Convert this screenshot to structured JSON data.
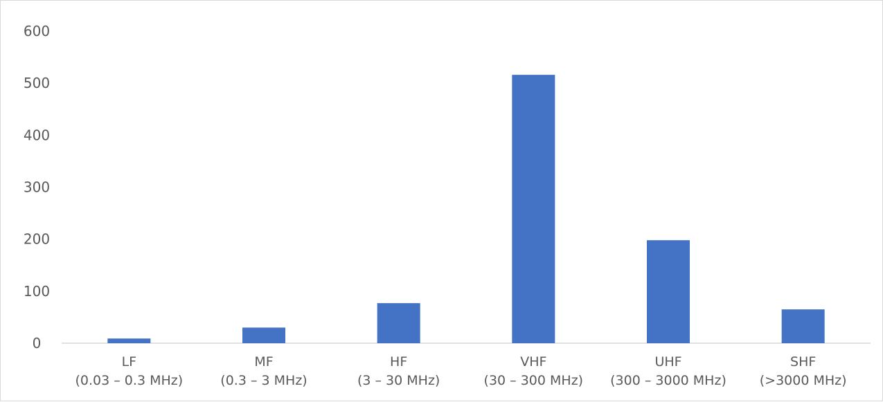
{
  "chart_data": {
    "type": "bar",
    "title": "",
    "xlabel": "",
    "ylabel": "",
    "categories": [
      [
        "LF",
        "(0.03 – 0.3 MHz)"
      ],
      [
        "MF",
        "(0.3 – 3 MHz)"
      ],
      [
        "HF",
        "(3 – 30 MHz)"
      ],
      [
        "VHF",
        "(30 – 300 MHz)"
      ],
      [
        "UHF",
        "(300 – 3000 MHz)"
      ],
      [
        "SHF",
        "(>3000 MHz)"
      ]
    ],
    "values": [
      9,
      30,
      77,
      516,
      198,
      65
    ],
    "ylim": [
      0,
      600
    ],
    "yticks": [
      "0",
      "100",
      "200",
      "300",
      "400",
      "500",
      "600"
    ],
    "grid": false,
    "legend": "none",
    "colors": {
      "bar": "#4472c4",
      "axis": "#d9d9d9",
      "text": "#595959"
    }
  }
}
